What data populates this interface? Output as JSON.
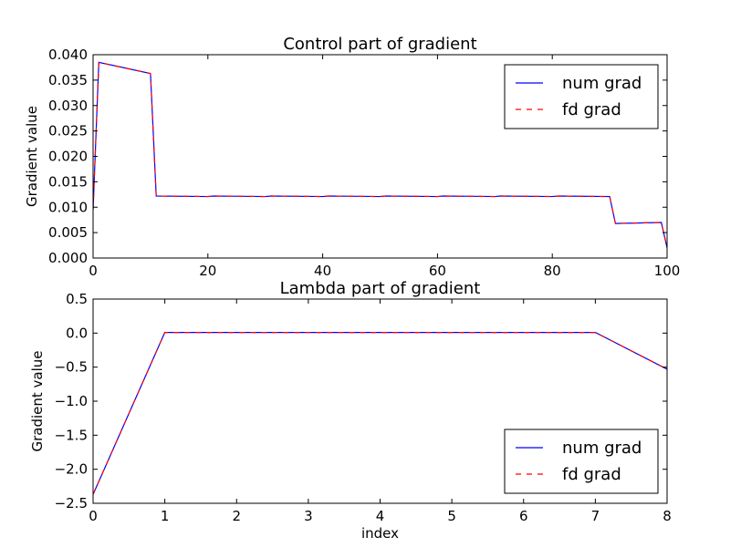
{
  "chart_data": [
    {
      "type": "line",
      "title": "Control part of gradient",
      "xlabel": "",
      "ylabel": "Gradient value",
      "xlim": [
        0,
        100
      ],
      "ylim": [
        0,
        0.04
      ],
      "xticks": [
        "0",
        "20",
        "40",
        "60",
        "80",
        "100"
      ],
      "yticks": [
        "0.000",
        "0.005",
        "0.010",
        "0.015",
        "0.020",
        "0.025",
        "0.030",
        "0.035",
        "0.040"
      ],
      "legend_position": "top-right",
      "series": [
        {
          "name": "num grad",
          "color": "#0000ff",
          "style": "solid",
          "x": [
            0,
            1,
            10,
            11,
            20,
            21,
            30,
            31,
            40,
            41,
            50,
            51,
            60,
            61,
            70,
            71,
            80,
            81,
            90,
            91,
            99,
            100
          ],
          "y": [
            0.0095,
            0.0385,
            0.0363,
            0.0122,
            0.0121,
            0.0122,
            0.0121,
            0.0122,
            0.0121,
            0.0122,
            0.0121,
            0.0122,
            0.0121,
            0.0122,
            0.0121,
            0.0122,
            0.0121,
            0.0122,
            0.0121,
            0.0068,
            0.007,
            0.002
          ]
        },
        {
          "name": "fd grad",
          "color": "#ff0000",
          "style": "dashed",
          "x": [
            0,
            1,
            10,
            11,
            20,
            21,
            30,
            31,
            40,
            41,
            50,
            51,
            60,
            61,
            70,
            71,
            80,
            81,
            90,
            91,
            99,
            100
          ],
          "y": [
            0.0095,
            0.0385,
            0.0363,
            0.0122,
            0.0121,
            0.0122,
            0.0121,
            0.0122,
            0.0121,
            0.0122,
            0.0121,
            0.0122,
            0.0121,
            0.0122,
            0.0121,
            0.0122,
            0.0121,
            0.0122,
            0.0121,
            0.0068,
            0.007,
            0.002
          ]
        }
      ]
    },
    {
      "type": "line",
      "title": "Lambda part of gradient",
      "xlabel": "index",
      "ylabel": "Gradient value",
      "xlim": [
        0,
        8
      ],
      "ylim": [
        -2.5,
        0.5
      ],
      "xticks": [
        "0",
        "1",
        "2",
        "3",
        "4",
        "5",
        "6",
        "7",
        "8"
      ],
      "yticks": [
        "−2.5",
        "−2.0",
        "−1.5",
        "−1.0",
        "−0.5",
        "0.0",
        "0.5"
      ],
      "legend_position": "bottom-right",
      "series": [
        {
          "name": "num grad",
          "color": "#0000ff",
          "style": "solid",
          "x": [
            0,
            1,
            2,
            3,
            4,
            5,
            6,
            7,
            8
          ],
          "y": [
            -2.37,
            0.01,
            0.01,
            0.01,
            0.01,
            0.01,
            0.01,
            0.01,
            -0.53
          ]
        },
        {
          "name": "fd grad",
          "color": "#ff0000",
          "style": "dashed",
          "x": [
            0,
            1,
            2,
            3,
            4,
            5,
            6,
            7,
            8
          ],
          "y": [
            -2.37,
            0.01,
            0.01,
            0.01,
            0.01,
            0.01,
            0.01,
            0.01,
            -0.53
          ]
        }
      ]
    }
  ]
}
